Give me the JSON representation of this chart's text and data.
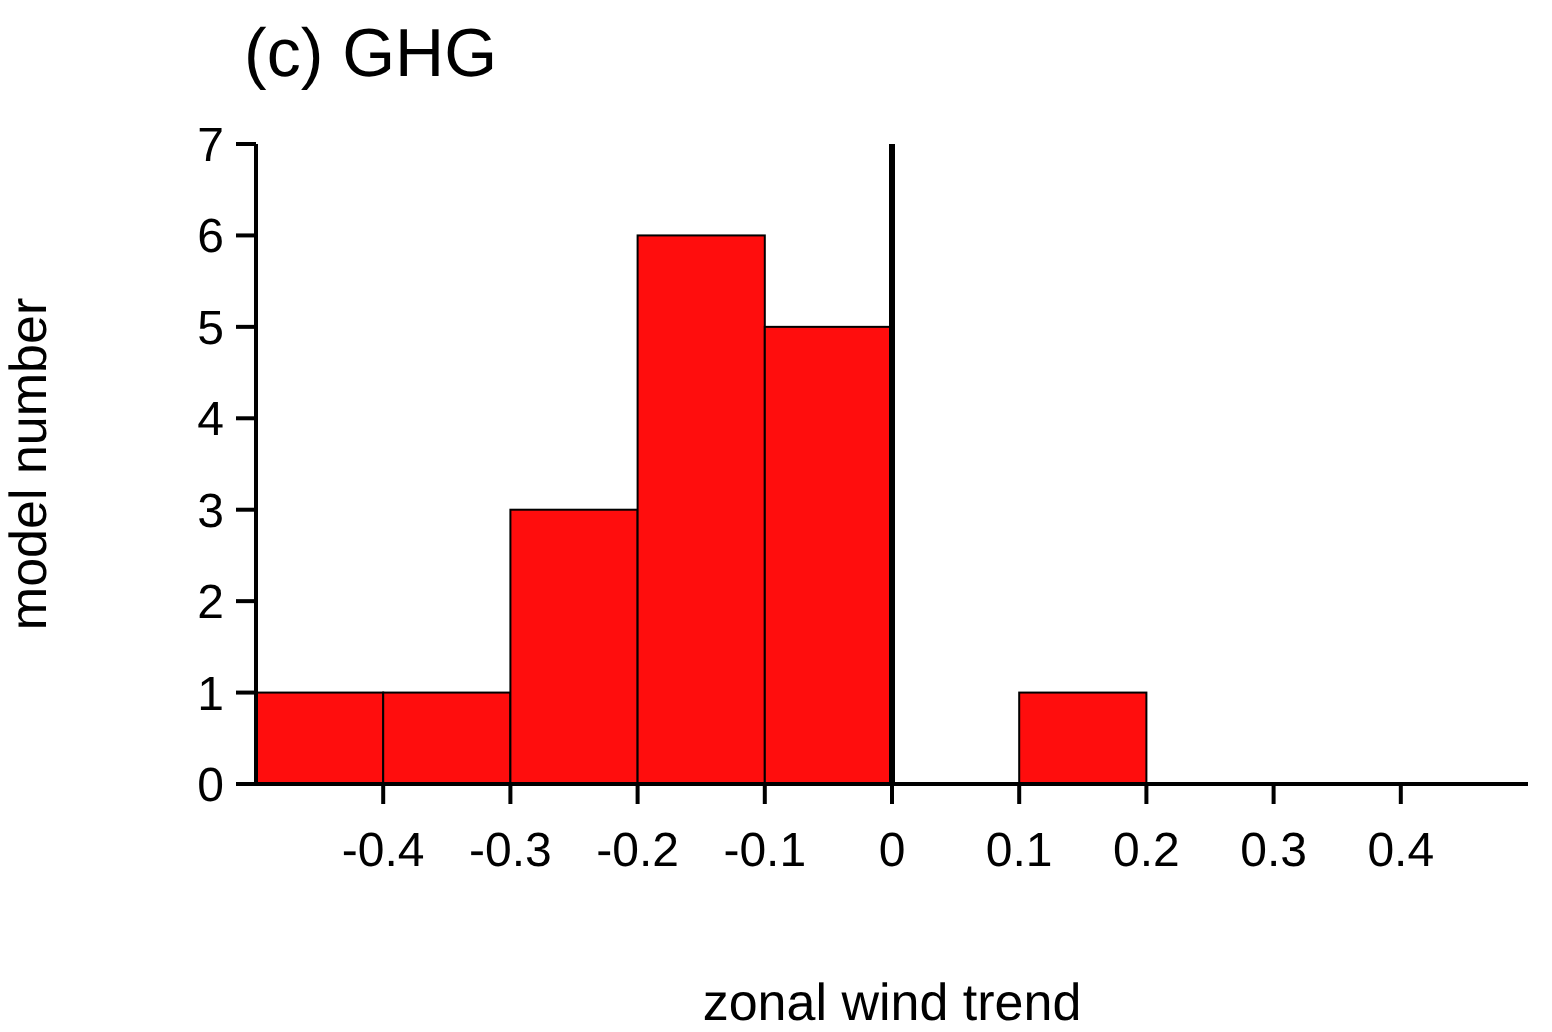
{
  "chart_data": {
    "type": "histogram",
    "title": "(c) GHG",
    "xlabel": "zonal wind trend",
    "ylabel": "model number",
    "bins": [
      -0.5,
      -0.4,
      -0.3,
      -0.2,
      -0.1,
      0,
      0.1,
      0.2,
      0.3,
      0.4,
      0.5
    ],
    "values": [
      1,
      1,
      3,
      6,
      5,
      0,
      1,
      0,
      0,
      0
    ],
    "color": "#ff0d0d",
    "xlim": [
      -0.5,
      0.5
    ],
    "xticks": [
      -0.4,
      -0.3,
      -0.2,
      -0.1,
      0,
      0.1,
      0.2,
      0.3,
      0.4
    ],
    "ylim": [
      0,
      7
    ],
    "yticks": [
      0,
      1,
      2,
      3,
      4,
      5,
      6,
      7
    ],
    "ref_lines": [
      {
        "axis": "x",
        "value": 0
      }
    ]
  }
}
